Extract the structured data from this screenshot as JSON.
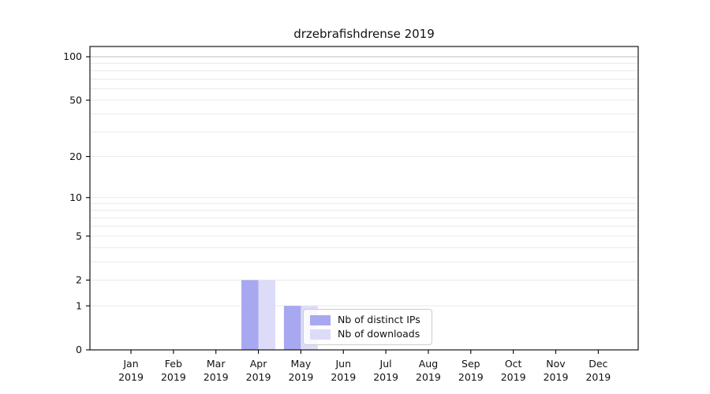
{
  "chart_data": {
    "type": "bar",
    "title": "drzebrafishdrense 2019",
    "categories": [
      "Jan",
      "Feb",
      "Mar",
      "Apr",
      "May",
      "Jun",
      "Jul",
      "Aug",
      "Sep",
      "Oct",
      "Nov",
      "Dec"
    ],
    "category_sublabel": "2019",
    "series": [
      {
        "name": "Nb of distinct IPs",
        "color": "#a8a8f0",
        "values": [
          0,
          0,
          0,
          2,
          1,
          0,
          0,
          0,
          0,
          0,
          0,
          0
        ]
      },
      {
        "name": "Nb of downloads",
        "color": "#dcdcf8",
        "values": [
          0,
          0,
          0,
          2,
          1,
          0,
          0,
          0,
          0,
          0,
          0,
          0
        ]
      }
    ],
    "yscale": "log1p",
    "yticks": [
      0,
      1,
      2,
      5,
      10,
      20,
      50,
      100
    ],
    "grid_values": [
      1,
      2,
      3,
      4,
      5,
      6,
      7,
      8,
      9,
      10,
      20,
      30,
      40,
      50,
      60,
      70,
      80,
      90,
      100
    ],
    "ylim": [
      0,
      117
    ],
    "xlabel": "",
    "ylabel": "",
    "grid": true,
    "legend_position": "lower center",
    "colors": {
      "grid_minor": "#e9e9e9",
      "grid_major": "#bdbdbd",
      "axis": "#000000",
      "text": "#111111"
    }
  }
}
